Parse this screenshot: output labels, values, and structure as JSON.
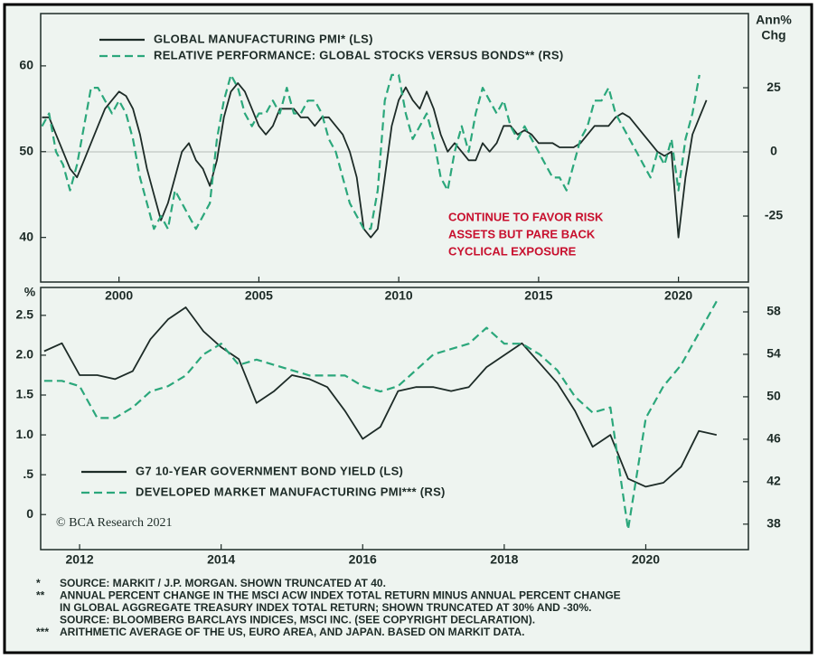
{
  "chart_data": [
    {
      "type": "line",
      "x": [
        1997.25,
        1997.5,
        1997.75,
        1998,
        1998.25,
        1998.5,
        1998.75,
        1999,
        1999.25,
        1999.5,
        1999.75,
        2000,
        2000.25,
        2000.5,
        2000.75,
        2001,
        2001.25,
        2001.5,
        2001.75,
        2002,
        2002.25,
        2002.5,
        2002.75,
        2003,
        2003.25,
        2003.5,
        2003.75,
        2004,
        2004.25,
        2004.5,
        2004.75,
        2005,
        2005.25,
        2005.5,
        2005.75,
        2006,
        2006.25,
        2006.5,
        2006.75,
        2007,
        2007.25,
        2007.5,
        2007.75,
        2008,
        2008.25,
        2008.5,
        2008.75,
        2009,
        2009.25,
        2009.5,
        2009.75,
        2010,
        2010.25,
        2010.5,
        2010.75,
        2011,
        2011.25,
        2011.5,
        2011.75,
        2012,
        2012.25,
        2012.5,
        2012.75,
        2013,
        2013.25,
        2013.5,
        2013.75,
        2014,
        2014.25,
        2014.5,
        2014.75,
        2015,
        2015.25,
        2015.5,
        2015.75,
        2016,
        2016.25,
        2016.5,
        2016.75,
        2017,
        2017.25,
        2017.5,
        2017.75,
        2018,
        2018.25,
        2018.5,
        2018.75,
        2019,
        2019.25,
        2019.5,
        2019.75,
        2020,
        2020.25,
        2020.5,
        2020.75,
        2021
      ],
      "series": [
        {
          "name": "GLOBAL MANUFACTURING PMI* (LS)",
          "color": "#1d2b27",
          "dash": false,
          "axis": "y",
          "values": [
            54,
            54,
            52,
            50,
            48,
            47,
            49,
            51,
            53,
            55,
            56,
            57,
            56.5,
            55,
            52,
            48,
            45,
            42,
            44,
            47,
            50,
            51,
            49,
            48,
            46,
            49,
            54,
            57,
            58,
            57,
            55,
            53,
            52,
            53,
            55,
            55,
            55,
            54,
            54,
            53,
            54,
            54,
            53,
            52,
            50,
            47,
            41,
            40,
            41,
            47,
            53,
            56,
            57.5,
            56,
            55,
            57,
            55,
            52,
            50,
            51,
            50,
            49,
            49,
            51,
            50,
            51,
            53,
            53,
            52,
            52.5,
            52,
            51,
            51,
            51,
            50.5,
            50.5,
            50.5,
            51,
            52,
            53,
            53,
            53,
            54,
            54.5,
            54,
            53,
            52,
            51,
            50,
            49.5,
            50,
            40,
            47,
            52,
            54,
            56
          ]
        },
        {
          "name": "RELATIVE PERFORMANCE: GLOBAL STOCKS VERSUS BONDS** (RS)",
          "color": "#2ba77b",
          "dash": true,
          "axis": "y2",
          "values": [
            10,
            15,
            0,
            -5,
            -15,
            -5,
            10,
            25,
            25,
            20,
            15,
            20,
            15,
            5,
            -10,
            -20,
            -30,
            -25,
            -30,
            -15,
            -20,
            -25,
            -30,
            -25,
            -20,
            5,
            20,
            30,
            25,
            15,
            10,
            15,
            15,
            20,
            15,
            25,
            15,
            15,
            20,
            20,
            15,
            5,
            0,
            -10,
            -20,
            -25,
            -30,
            -30,
            -15,
            20,
            30,
            30,
            15,
            5,
            10,
            15,
            5,
            -10,
            -15,
            0,
            10,
            0,
            15,
            25,
            20,
            15,
            20,
            10,
            5,
            10,
            5,
            0,
            -5,
            -10,
            -10,
            -15,
            -5,
            5,
            10,
            20,
            20,
            25,
            15,
            10,
            5,
            0,
            -5,
            -10,
            0,
            -5,
            5,
            -15,
            5,
            15,
            30,
            null
          ]
        }
      ],
      "xlim": [
        1997.2,
        2022.5
      ],
      "xticks": [
        2000,
        2005,
        2010,
        2015,
        2020
      ],
      "ylim": [
        34.8,
        66.1
      ],
      "yticks": [
        40,
        50,
        60
      ],
      "y2lim": [
        -50.7,
        53.9
      ],
      "y2ticks": [
        -25,
        0,
        25
      ],
      "y2label": [
        "Ann%",
        "Chg"
      ],
      "reference_line": {
        "axis": "y2",
        "value": 0
      },
      "annotation": [
        "CONTINUE TO FAVOR RISK",
        "ASSETS BUT PARE BACK",
        "CYCLICAL EXPOSURE"
      ]
    },
    {
      "type": "line",
      "x": [
        2011.5,
        2011.75,
        2012,
        2012.25,
        2012.5,
        2012.75,
        2013,
        2013.25,
        2013.5,
        2013.75,
        2014,
        2014.25,
        2014.5,
        2014.75,
        2015,
        2015.25,
        2015.5,
        2015.75,
        2016,
        2016.25,
        2016.5,
        2016.75,
        2017,
        2017.25,
        2017.5,
        2017.75,
        2018,
        2018.25,
        2018.5,
        2018.75,
        2019,
        2019.25,
        2019.5,
        2019.75,
        2020,
        2020.25,
        2020.5,
        2020.75,
        2021
      ],
      "series": [
        {
          "name": "G7 10-YEAR GOVERNMENT BOND YIELD (LS)",
          "color": "#1d2b27",
          "dash": false,
          "axis": "y",
          "values": [
            2.05,
            2.15,
            1.75,
            1.75,
            1.7,
            1.8,
            2.2,
            2.45,
            2.6,
            2.3,
            2.1,
            1.95,
            1.4,
            1.55,
            1.75,
            1.7,
            1.6,
            1.3,
            0.95,
            1.1,
            1.55,
            1.6,
            1.6,
            1.55,
            1.6,
            1.85,
            2.0,
            2.15,
            1.9,
            1.65,
            1.3,
            0.85,
            1.0,
            0.45,
            0.35,
            0.4,
            0.6,
            1.05,
            1.0
          ]
        },
        {
          "name": "DEVELOPED MARKET MANUFACTURING PMI*** (RS)",
          "color": "#2ba77b",
          "dash": true,
          "axis": "y2",
          "values": [
            51.5,
            51.5,
            51,
            48,
            48,
            49,
            50.5,
            51,
            52,
            54,
            55,
            53,
            53.5,
            53,
            52.5,
            52,
            52,
            52,
            51,
            50.5,
            51,
            52.5,
            54,
            54.5,
            55,
            56.5,
            55,
            55,
            54,
            52.5,
            50,
            48.5,
            49,
            37.5,
            48,
            51,
            53,
            56,
            59
          ]
        }
      ],
      "xlim": [
        2011.45,
        2021.45
      ],
      "xticks": [
        2012,
        2014,
        2016,
        2018,
        2020
      ],
      "ylim": [
        -0.44,
        2.85
      ],
      "yticks": [
        0,
        {
          "value": 0.5,
          "label": ".5"
        },
        {
          "value": 1,
          "label": "1.0"
        },
        1.5,
        {
          "value": 2,
          "label": "2.0"
        },
        2.5
      ],
      "y2lim": [
        35.6,
        60.3
      ],
      "y2ticks": [
        38,
        42,
        46,
        50,
        54,
        58
      ],
      "ylabel": "%",
      "credit": "© BCA Research 2021"
    }
  ],
  "footnotes": [
    {
      "marker": "*",
      "lines": [
        "SOURCE: MARKIT / J.P. MORGAN. SHOWN TRUNCATED AT 40."
      ]
    },
    {
      "marker": "**",
      "lines": [
        "ANNUAL PERCENT CHANGE IN THE MSCI ACW INDEX TOTAL RETURN MINUS ANNUAL PERCENT CHANGE",
        "IN GLOBAL AGGREGATE TREASURY INDEX TOTAL RETURN; SHOWN TRUNCATED AT 30% AND -30%.",
        "SOURCE: BLOOMBERG BARCLAYS INDICES, MSCI INC. (SEE COPYRIGHT DECLARATION)."
      ]
    },
    {
      "marker": "***",
      "lines": [
        "ARITHMETIC AVERAGE OF THE US, EURO AREA, AND JAPAN. BASED ON MARKIT DATA."
      ]
    }
  ]
}
